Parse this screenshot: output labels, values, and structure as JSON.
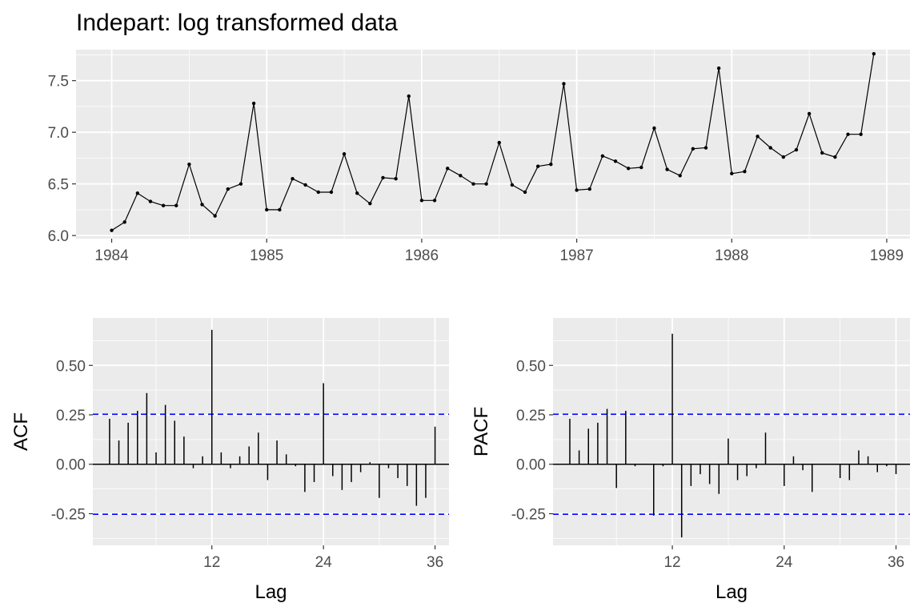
{
  "title": "Indepart: log transformed data",
  "colors": {
    "panel_bg": "#EBEBEB",
    "grid_major": "#FFFFFF",
    "series_line": "#000000",
    "confidence_line": "#0000FF",
    "tick_text": "#4D4D4D"
  },
  "chart_data": [
    {
      "type": "line",
      "name": "time-series",
      "title": "Indepart: log transformed data",
      "xlabel": "",
      "ylabel": "",
      "x_start": 1984.0,
      "x_step": 0.08333333,
      "xlim": [
        1983.77,
        1989.15
      ],
      "ylim": [
        5.97,
        7.8
      ],
      "xticks": [
        1984,
        1985,
        1986,
        1987,
        1988,
        1989
      ],
      "xtick_labels": [
        "1984",
        "1985",
        "1986",
        "1987",
        "1988",
        "1989"
      ],
      "yticks": [
        6.0,
        6.5,
        7.0,
        7.5
      ],
      "ytick_labels": [
        "6.0",
        "6.5",
        "7.0",
        "7.5"
      ],
      "values": [
        6.05,
        6.13,
        6.41,
        6.33,
        6.29,
        6.29,
        6.69,
        6.3,
        6.19,
        6.45,
        6.5,
        7.28,
        6.25,
        6.25,
        6.55,
        6.49,
        6.42,
        6.42,
        6.79,
        6.41,
        6.31,
        6.56,
        6.55,
        7.35,
        6.34,
        6.34,
        6.65,
        6.58,
        6.5,
        6.5,
        6.9,
        6.49,
        6.42,
        6.67,
        6.69,
        7.47,
        6.44,
        6.45,
        6.77,
        6.72,
        6.65,
        6.66,
        7.04,
        6.64,
        6.58,
        6.84,
        6.85,
        7.62,
        6.6,
        6.62,
        6.96,
        6.85,
        6.76,
        6.83,
        7.18,
        6.8,
        6.76,
        6.98,
        6.98,
        7.76
      ],
      "grid": true
    },
    {
      "type": "bar",
      "name": "acf",
      "xlabel": "Lag",
      "ylabel": "ACF",
      "xlim": [
        -0.8,
        37.5
      ],
      "ylim": [
        -0.41,
        0.74
      ],
      "xticks": [
        12,
        24,
        36
      ],
      "xtick_labels": [
        "12",
        "24",
        "36"
      ],
      "yticks": [
        -0.25,
        0.0,
        0.25,
        0.5
      ],
      "ytick_labels": [
        "-0.25",
        "0.00",
        "0.25",
        "0.50"
      ],
      "lags": [
        1,
        2,
        3,
        4,
        5,
        6,
        7,
        8,
        9,
        10,
        11,
        12,
        13,
        14,
        15,
        16,
        17,
        18,
        19,
        20,
        21,
        22,
        23,
        24,
        25,
        26,
        27,
        28,
        29,
        30,
        31,
        32,
        33,
        34,
        35,
        36
      ],
      "values": [
        0.23,
        0.12,
        0.21,
        0.27,
        0.36,
        0.06,
        0.3,
        0.22,
        0.14,
        -0.02,
        0.04,
        0.68,
        0.06,
        -0.02,
        0.04,
        0.09,
        0.16,
        -0.08,
        0.12,
        0.05,
        -0.01,
        -0.14,
        -0.09,
        0.41,
        -0.06,
        -0.13,
        -0.09,
        -0.04,
        0.01,
        -0.17,
        -0.02,
        -0.07,
        -0.11,
        -0.21,
        -0.17,
        0.19
      ],
      "confidence_bounds": [
        0.253,
        -0.253
      ],
      "grid": true
    },
    {
      "type": "bar",
      "name": "pacf",
      "xlabel": "Lag",
      "ylabel": "PACF",
      "xlim": [
        -0.8,
        37.5
      ],
      "ylim": [
        -0.41,
        0.74
      ],
      "xticks": [
        12,
        24,
        36
      ],
      "xtick_labels": [
        "12",
        "24",
        "36"
      ],
      "yticks": [
        -0.25,
        0.0,
        0.25,
        0.5
      ],
      "ytick_labels": [
        "-0.25",
        "0.00",
        "0.25",
        "0.50"
      ],
      "lags": [
        1,
        2,
        3,
        4,
        5,
        6,
        7,
        8,
        9,
        10,
        11,
        12,
        13,
        14,
        15,
        16,
        17,
        18,
        19,
        20,
        21,
        22,
        23,
        24,
        25,
        26,
        27,
        28,
        29,
        30,
        31,
        32,
        33,
        34,
        35,
        36
      ],
      "values": [
        0.23,
        0.07,
        0.18,
        0.21,
        0.28,
        -0.12,
        0.27,
        -0.01,
        0.0,
        -0.26,
        -0.01,
        0.66,
        -0.37,
        -0.11,
        -0.05,
        -0.1,
        -0.15,
        0.13,
        -0.08,
        -0.06,
        -0.02,
        0.16,
        0.0,
        -0.11,
        0.04,
        -0.03,
        -0.14,
        0.0,
        0.0,
        -0.07,
        -0.08,
        0.07,
        0.04,
        -0.04,
        -0.01,
        -0.05
      ],
      "confidence_bounds": [
        0.253,
        -0.253
      ],
      "grid": true
    }
  ]
}
